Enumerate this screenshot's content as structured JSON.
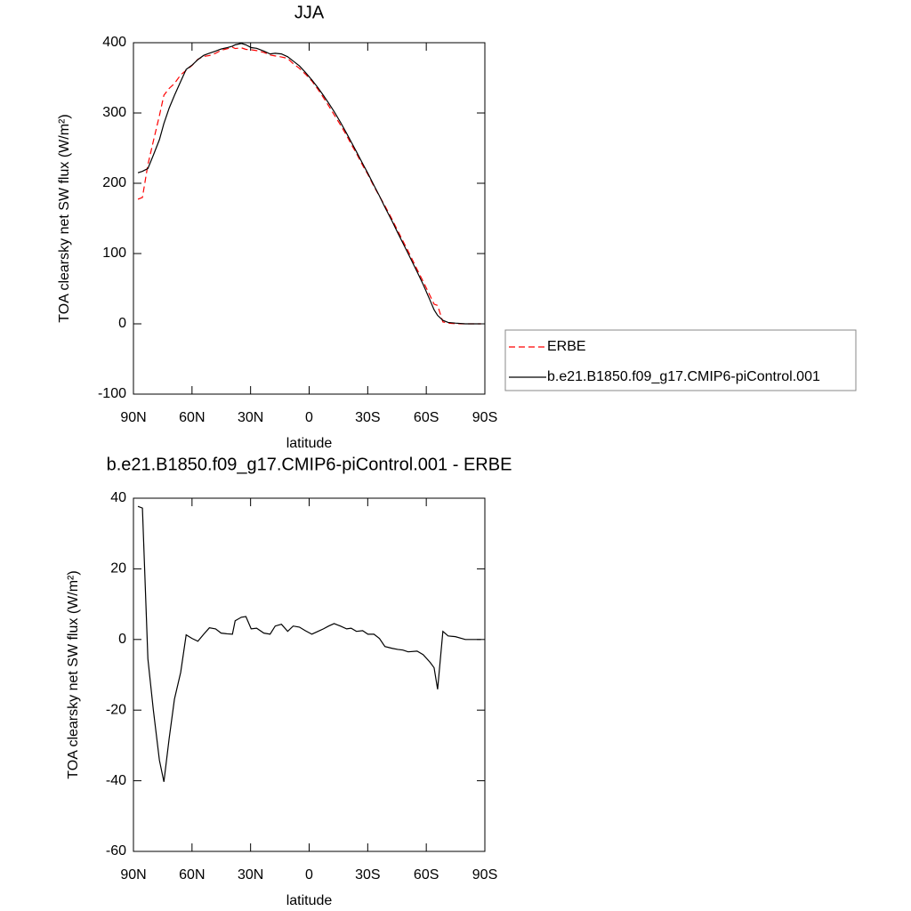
{
  "chart_data": [
    {
      "type": "line",
      "title": "JJA",
      "xlabel": "latitude",
      "ylabel": "TOA clearsky net SW flux (W/m²)",
      "xlim": [
        90,
        -90
      ],
      "xticks": [
        {
          "value": 90,
          "label": "90N"
        },
        {
          "value": 60,
          "label": "60N"
        },
        {
          "value": 30,
          "label": "30N"
        },
        0,
        {
          "value": -30,
          "label": "30S"
        },
        {
          "value": -60,
          "label": "60S"
        },
        {
          "value": -90,
          "label": "90S"
        }
      ],
      "ylim": [
        -100,
        400
      ],
      "yticks": [
        -100,
        0,
        100,
        200,
        300,
        400
      ],
      "legend": "outside right",
      "x": [
        87.7,
        85.4,
        82.6,
        79.8,
        76.7,
        74.4,
        71.7,
        69,
        65.8,
        63,
        60,
        57,
        54,
        51.1,
        47.9,
        45.1,
        42,
        39.3,
        37.9,
        34.7,
        32.4,
        29.7,
        26.9,
        23.2,
        20,
        17.4,
        14.2,
        11,
        8.2,
        5,
        2,
        -1.4,
        -4.5,
        -7.3,
        -10,
        -12.8,
        -16,
        -19.2,
        -21.5,
        -24.2,
        -27.4,
        -30.1,
        -33.2,
        -36,
        -38.8,
        -42.5,
        -45.3,
        -48,
        -50.7,
        -55.3,
        -58.4,
        -62,
        -64,
        -65.8,
        -68.5,
        -71.2,
        -74.9,
        -80,
        -85,
        -88
      ],
      "series": [
        {
          "name": "ERBE",
          "color": "#ff0000",
          "linestyle": "dashed",
          "values": [
            177.3,
            179.8,
            226.5,
            260,
            296.2,
            325.3,
            335,
            341.9,
            354.3,
            360.7,
            367.7,
            376.5,
            380.5,
            381.7,
            385,
            389.2,
            391.4,
            393.5,
            391.7,
            392.7,
            390.5,
            390,
            388.8,
            386.2,
            382.5,
            381.2,
            379.7,
            377.7,
            370.2,
            363.5,
            355.5,
            345.5,
            333.7,
            322,
            310.2,
            297.5,
            283.2,
            268,
            255.8,
            242.7,
            225.5,
            212.5,
            195.5,
            181.7,
            168,
            148.5,
            132.8,
            118,
            103.5,
            77.3,
            60.3,
            39.5,
            28,
            26.1,
            2.7,
            1,
            0.2,
            0,
            0,
            0
          ]
        },
        {
          "name": "b.e21.B1850.f09_g17.CMIP6-piControl.001",
          "color": "#000000",
          "linestyle": "solid",
          "values": [
            215,
            217,
            221,
            240,
            262,
            285,
            307,
            325,
            345,
            362,
            368,
            376,
            382,
            385,
            388,
            391,
            393,
            395,
            397,
            399,
            397,
            393,
            392,
            388,
            384,
            385,
            384,
            380,
            374,
            367,
            358,
            347,
            336,
            325,
            314,
            302,
            287,
            271,
            259,
            245,
            228,
            214,
            197,
            182,
            166,
            146,
            130,
            115,
            100,
            74,
            56,
            33,
            20,
            12,
            5,
            2,
            1,
            0,
            0,
            0
          ]
        }
      ]
    },
    {
      "type": "line",
      "title": "b.e21.B1850.f09_g17.CMIP6-piControl.001 - ERBE",
      "xlabel": "latitude",
      "ylabel": "TOA clearsky net SW flux (W/m²)",
      "xlim": [
        90,
        -90
      ],
      "xticks": [
        {
          "value": 90,
          "label": "90N"
        },
        {
          "value": 60,
          "label": "60N"
        },
        {
          "value": 30,
          "label": "30N"
        },
        0,
        {
          "value": -30,
          "label": "30S"
        },
        {
          "value": -60,
          "label": "60S"
        },
        {
          "value": -90,
          "label": "90S"
        }
      ],
      "ylim": [
        -60,
        40
      ],
      "yticks": [
        -60,
        -40,
        -20,
        0,
        20,
        40
      ],
      "x": [
        87.7,
        85.4,
        82.6,
        79.8,
        76.7,
        74.4,
        71.7,
        69,
        65.8,
        63,
        60,
        57,
        54,
        51.1,
        47.9,
        45.1,
        42,
        39.3,
        37.9,
        34.7,
        32.4,
        29.7,
        26.9,
        23.2,
        20,
        17.4,
        14.2,
        11,
        8.2,
        5,
        2,
        -1.4,
        -4.5,
        -7.3,
        -10,
        -12.8,
        -16,
        -19.2,
        -21.5,
        -24.2,
        -27.4,
        -30.1,
        -33.2,
        -36,
        -38.8,
        -42.5,
        -45.3,
        -48,
        -50.7,
        -55.3,
        -58.4,
        -62,
        -64,
        -65.8,
        -68.5,
        -71.2,
        -74.9,
        -80,
        -85,
        -88
      ],
      "series": [
        {
          "color": "#000000",
          "linestyle": "solid",
          "values": [
            37.7,
            37.2,
            -5.5,
            -20,
            -34.2,
            -40.3,
            -28,
            -16.9,
            -9.3,
            1.3,
            0.3,
            -0.5,
            1.5,
            3.3,
            3,
            1.8,
            1.6,
            1.5,
            5.3,
            6.3,
            6.5,
            3,
            3.2,
            1.8,
            1.5,
            3.8,
            4.3,
            2.3,
            3.8,
            3.5,
            2.5,
            1.5,
            2.3,
            3,
            3.8,
            4.5,
            3.8,
            3,
            3.2,
            2.3,
            2.5,
            1.5,
            1.5,
            0.3,
            -2,
            -2.5,
            -2.8,
            -3,
            -3.5,
            -3.3,
            -4.3,
            -6.5,
            -8,
            -14.1,
            2.3,
            1,
            0.8,
            0,
            0,
            0
          ]
        }
      ]
    }
  ]
}
